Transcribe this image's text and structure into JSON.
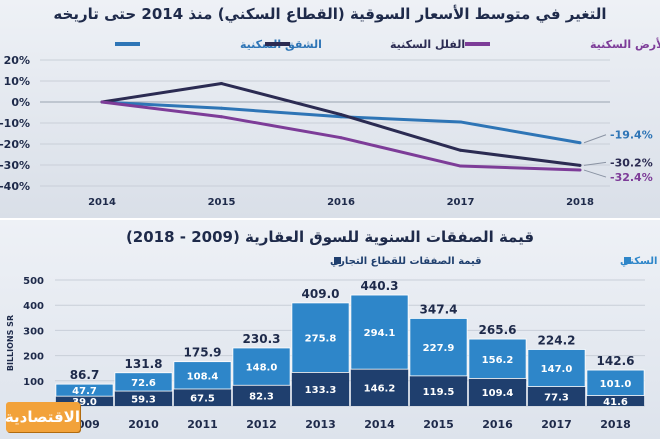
{
  "chart_data": [
    {
      "type": "line",
      "title": "التغير في متوسط الأسعار السوقية (القطاع السكني) منذ 2014 حتى تاريخه",
      "x": [
        "2014",
        "2015",
        "2016",
        "2017",
        "2018"
      ],
      "ylim": [
        -40,
        20
      ],
      "yticks": [
        "20%",
        "10%",
        "0%",
        "-10%",
        "-20%",
        "-30%",
        "-40%"
      ],
      "grid": true,
      "legend_position": "top",
      "series": [
        {
          "name": "الشقق السكنية",
          "values": [
            0,
            -3,
            -7,
            -9.5,
            -19.4
          ],
          "color": "#2e75b6",
          "end_label": "-19.4%"
        },
        {
          "name": "الفلل السكنية",
          "values": [
            0,
            8.8,
            -6,
            -23,
            -30.2
          ],
          "color": "#2b2b52",
          "end_label": "-30.2%"
        },
        {
          "name": "المتر المربع للأرض السكنية",
          "values": [
            0,
            -7,
            -17,
            -30.5,
            -32.4
          ],
          "color": "#7d3c98",
          "end_label": "-32.4%"
        }
      ]
    },
    {
      "type": "bar",
      "stacked": true,
      "title": "قيمة الصفقات السنوية للسوق العقارية (2009 - 2018)",
      "ylabel": "BILLIONS SR",
      "ylim": [
        0,
        500
      ],
      "yticks": [
        "0",
        "100",
        "200",
        "300",
        "400",
        "500"
      ],
      "categories": [
        "2009",
        "2010",
        "2011",
        "2012",
        "2013",
        "2014",
        "2015",
        "2016",
        "2017",
        "2018"
      ],
      "totals": [
        "86.7",
        "131.8",
        "175.9",
        "230.3",
        "409.0",
        "440.3",
        "347.4",
        "265.6",
        "224.2",
        "142.6"
      ],
      "legend_position": "top",
      "series": [
        {
          "name": "قيمة الصفقات للقطاع التجاري",
          "color": "#1f3f6e",
          "values": [
            39.0,
            59.3,
            67.5,
            82.3,
            133.3,
            146.2,
            119.5,
            109.4,
            77.3,
            41.6
          ],
          "labels": [
            "39.0",
            "59.3",
            "67.5",
            "82.3",
            "133.3",
            "146.2",
            "119.5",
            "109.4",
            "77.3",
            "41.6"
          ]
        },
        {
          "name": "قيمة الصفقات للقطاع السكني",
          "color": "#2e86c9",
          "values": [
            47.7,
            72.6,
            108.4,
            148.0,
            275.8,
            294.1,
            227.9,
            156.2,
            147.0,
            101.0
          ],
          "labels": [
            "47.7",
            "72.6",
            "108.4",
            "148.0",
            "275.8",
            "294.1",
            "227.9",
            "156.2",
            "147.0",
            "101.0"
          ]
        }
      ]
    }
  ],
  "logo_text": "الاقتصادية"
}
